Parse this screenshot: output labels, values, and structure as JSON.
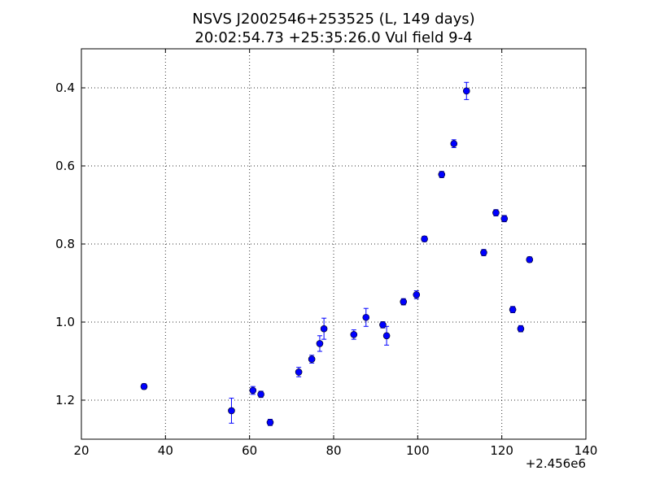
{
  "chart_data": {
    "type": "scatter",
    "title_line1": "NSVS J2002546+253525 (L, 149 days)",
    "title_line2": "20:02:54.73 +25:35:26.0 Vul field 9-4",
    "x_offset_label": "+2.456e6",
    "xlabel": "",
    "ylabel": "",
    "xlim": [
      20,
      140
    ],
    "ylim": [
      1.3,
      0.3
    ],
    "y_inverted": true,
    "grid": true,
    "x_ticks": [
      20,
      40,
      60,
      80,
      100,
      120,
      140
    ],
    "x_tick_labels": [
      "20",
      "40",
      "60",
      "80",
      "100",
      "120",
      "140"
    ],
    "y_ticks": [
      0.4,
      0.6,
      0.8,
      1.0,
      1.2
    ],
    "y_tick_labels": [
      "0.4",
      "0.6",
      "0.8",
      "1.0",
      "1.2"
    ],
    "marker_color": "#0000ff",
    "errorbar_color": "#0000ff",
    "points": [
      {
        "x": 34.9,
        "y": 1.165,
        "err": 0.007
      },
      {
        "x": 55.7,
        "y": 1.227,
        "err": 0.032
      },
      {
        "x": 60.8,
        "y": 1.175,
        "err": 0.01
      },
      {
        "x": 62.7,
        "y": 1.185,
        "err": 0.008
      },
      {
        "x": 64.9,
        "y": 1.257,
        "err": 0.008
      },
      {
        "x": 71.7,
        "y": 1.128,
        "err": 0.012
      },
      {
        "x": 74.8,
        "y": 1.095,
        "err": 0.01
      },
      {
        "x": 76.7,
        "y": 1.055,
        "err": 0.02
      },
      {
        "x": 77.7,
        "y": 1.017,
        "err": 0.027
      },
      {
        "x": 84.8,
        "y": 1.032,
        "err": 0.012
      },
      {
        "x": 87.7,
        "y": 0.988,
        "err": 0.023
      },
      {
        "x": 91.7,
        "y": 1.007,
        "err": 0.008
      },
      {
        "x": 92.6,
        "y": 1.035,
        "err": 0.024
      },
      {
        "x": 96.6,
        "y": 0.948,
        "err": 0.008
      },
      {
        "x": 99.7,
        "y": 0.93,
        "err": 0.01
      },
      {
        "x": 101.6,
        "y": 0.787,
        "err": 0.007
      },
      {
        "x": 105.7,
        "y": 0.622,
        "err": 0.008
      },
      {
        "x": 108.6,
        "y": 0.543,
        "err": 0.01
      },
      {
        "x": 111.6,
        "y": 0.408,
        "err": 0.022
      },
      {
        "x": 115.7,
        "y": 0.822,
        "err": 0.008
      },
      {
        "x": 118.6,
        "y": 0.72,
        "err": 0.008
      },
      {
        "x": 120.6,
        "y": 0.735,
        "err": 0.008
      },
      {
        "x": 122.6,
        "y": 0.968,
        "err": 0.008
      },
      {
        "x": 124.5,
        "y": 1.017,
        "err": 0.008
      },
      {
        "x": 126.6,
        "y": 0.84,
        "err": 0.007
      }
    ]
  }
}
